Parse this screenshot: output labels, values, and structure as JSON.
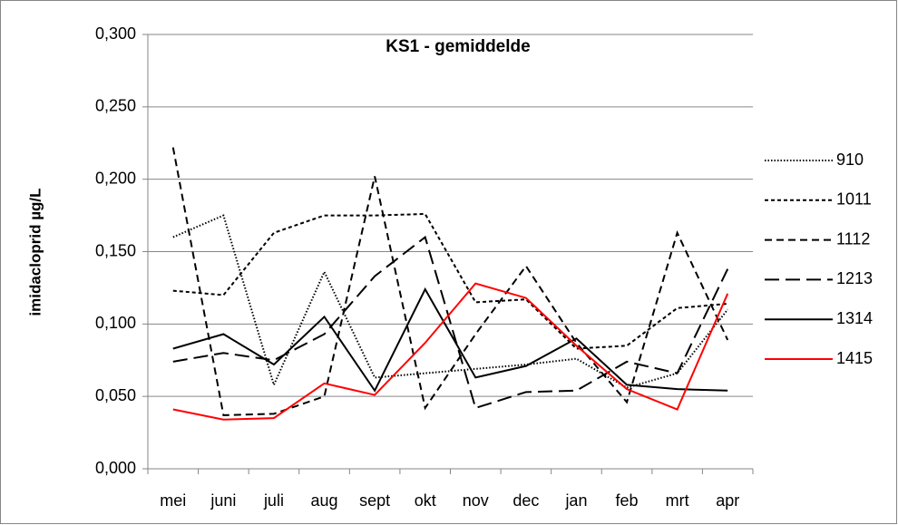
{
  "chart_data": {
    "type": "line",
    "title": "KS1 - gemiddelde",
    "y_label": "imidacloprid µg/L",
    "categories": [
      "mei",
      "juni",
      "juli",
      "aug",
      "sept",
      "okt",
      "nov",
      "dec",
      "jan",
      "feb",
      "mrt",
      "apr"
    ],
    "ylim": [
      0,
      0.3
    ],
    "yticks": [
      {
        "value": 0,
        "label": "0,000"
      },
      {
        "value": 0.05,
        "label": "0,050"
      },
      {
        "value": 0.1,
        "label": "0,100"
      },
      {
        "value": 0.15,
        "label": "0,150"
      },
      {
        "value": 0.2,
        "label": "0,200"
      },
      {
        "value": 0.25,
        "label": "0,250"
      },
      {
        "value": 0.3,
        "label": "0,300"
      }
    ],
    "grid": true,
    "legend": "right",
    "series": [
      {
        "name": "910",
        "color": "#000000",
        "line_style": "dotted",
        "values": [
          0.16,
          0.175,
          0.058,
          0.136,
          0.063,
          0.066,
          0.069,
          0.072,
          0.076,
          0.056,
          0.066,
          0.11
        ]
      },
      {
        "name": "1011",
        "color": "#000000",
        "line_style": "short-dash",
        "values": [
          0.123,
          0.12,
          0.163,
          0.175,
          0.175,
          0.176,
          0.115,
          0.117,
          0.083,
          0.085,
          0.111,
          0.114
        ]
      },
      {
        "name": "1112",
        "color": "#000000",
        "line_style": "dash",
        "values": [
          0.222,
          0.037,
          0.038,
          0.05,
          0.202,
          0.042,
          0.093,
          0.14,
          0.087,
          0.046,
          0.163,
          0.089
        ]
      },
      {
        "name": "1213",
        "color": "#000000",
        "line_style": "long-dash",
        "values": [
          0.074,
          0.08,
          0.075,
          0.093,
          0.133,
          0.16,
          0.042,
          0.053,
          0.054,
          0.074,
          0.066,
          0.138
        ]
      },
      {
        "name": "1314",
        "color": "#000000",
        "line_style": "solid",
        "values": [
          0.083,
          0.093,
          0.072,
          0.105,
          0.054,
          0.124,
          0.063,
          0.071,
          0.09,
          0.058,
          0.055,
          0.054
        ]
      },
      {
        "name": "1415",
        "color": "#ff0000",
        "line_style": "solid",
        "values": [
          0.041,
          0.034,
          0.035,
          0.059,
          0.051,
          0.087,
          0.128,
          0.118,
          0.085,
          0.055,
          0.041,
          0.121
        ]
      }
    ]
  }
}
